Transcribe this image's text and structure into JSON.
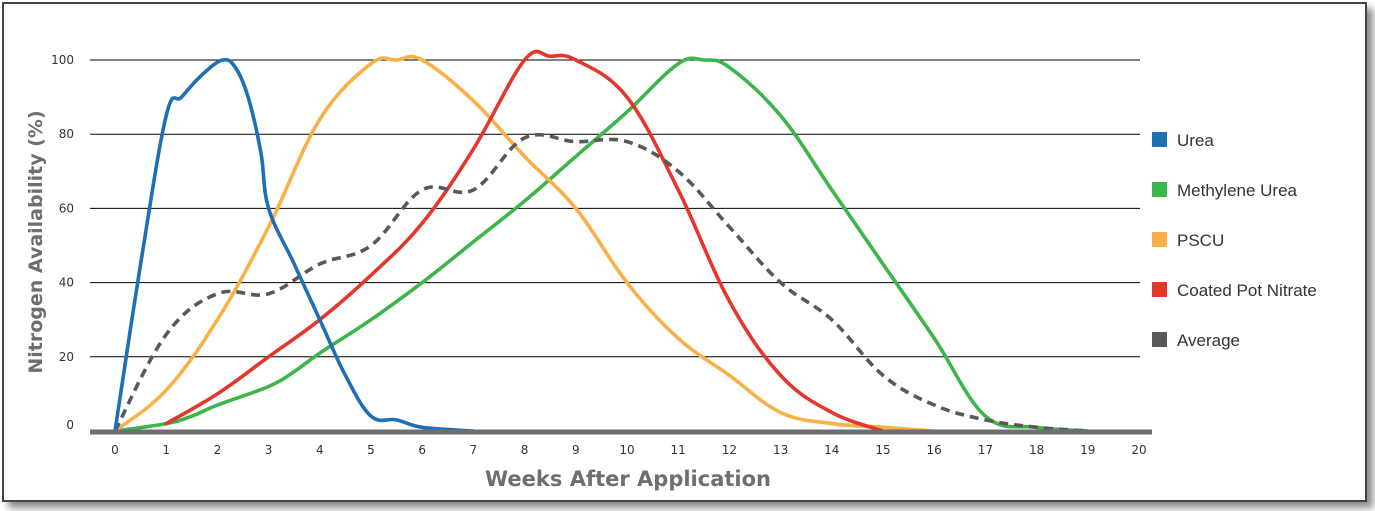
{
  "chart_data": {
    "type": "line",
    "xlabel": "Weeks After Application",
    "ylabel": "Nitrogen Availability (%)",
    "xlim": [
      0,
      20
    ],
    "ylim": [
      0,
      100
    ],
    "x_ticks": [
      "0",
      "1",
      "2",
      "3",
      "4",
      "5",
      "6",
      "7",
      "8",
      "9",
      "10",
      "11",
      "12",
      "13",
      "14",
      "15",
      "16",
      "17",
      "18",
      "19",
      "20"
    ],
    "y_ticks": [
      "0",
      "20",
      "40",
      "60",
      "80",
      "100"
    ],
    "grid": "horizontal",
    "legend_position": "right",
    "series": [
      {
        "name": "Urea",
        "color": "#1f6fb5",
        "dashed": false,
        "points": [
          [
            0,
            0
          ],
          [
            0.5,
            45
          ],
          [
            1,
            85
          ],
          [
            1.3,
            90
          ],
          [
            1.7,
            96
          ],
          [
            2.1,
            100
          ],
          [
            2.35,
            98
          ],
          [
            2.6,
            90
          ],
          [
            2.85,
            75
          ],
          [
            3,
            60
          ],
          [
            3.5,
            45
          ],
          [
            4,
            30
          ],
          [
            4.5,
            15
          ],
          [
            5,
            4
          ],
          [
            5.5,
            3
          ],
          [
            6,
            1
          ],
          [
            7,
            0
          ]
        ]
      },
      {
        "name": "Methylene Urea",
        "color": "#3cb54a",
        "dashed": false,
        "points": [
          [
            0,
            0
          ],
          [
            1,
            2
          ],
          [
            1.5,
            4
          ],
          [
            2,
            7
          ],
          [
            3,
            12
          ],
          [
            3.5,
            16
          ],
          [
            4,
            21
          ],
          [
            5,
            30
          ],
          [
            6,
            40
          ],
          [
            7,
            51
          ],
          [
            8,
            62
          ],
          [
            9,
            74
          ],
          [
            10,
            86
          ],
          [
            11,
            99
          ],
          [
            11.5,
            100
          ],
          [
            12,
            98
          ],
          [
            13,
            85
          ],
          [
            14,
            65
          ],
          [
            15,
            45
          ],
          [
            16,
            25
          ],
          [
            17,
            4
          ],
          [
            18,
            1
          ],
          [
            19,
            0
          ]
        ]
      },
      {
        "name": "PSCU",
        "color": "#f9b046",
        "dashed": false,
        "points": [
          [
            0,
            0
          ],
          [
            1,
            11
          ],
          [
            2,
            30
          ],
          [
            3,
            55
          ],
          [
            4,
            84
          ],
          [
            5,
            99
          ],
          [
            5.5,
            100
          ],
          [
            6,
            100
          ],
          [
            7,
            89
          ],
          [
            8,
            74
          ],
          [
            9,
            60
          ],
          [
            10,
            40
          ],
          [
            11,
            25
          ],
          [
            12,
            15
          ],
          [
            13,
            5
          ],
          [
            14,
            2
          ],
          [
            15,
            1
          ],
          [
            16,
            0
          ]
        ]
      },
      {
        "name": "Coated Pot Nitrate",
        "color": "#e4362b",
        "dashed": false,
        "points": [
          [
            1,
            2
          ],
          [
            2,
            10
          ],
          [
            3,
            20
          ],
          [
            4,
            30
          ],
          [
            5,
            42
          ],
          [
            6,
            56
          ],
          [
            7,
            76
          ],
          [
            8,
            100
          ],
          [
            8.5,
            101
          ],
          [
            9,
            100
          ],
          [
            10,
            90
          ],
          [
            11,
            65
          ],
          [
            12,
            35
          ],
          [
            13,
            15
          ],
          [
            14,
            5
          ],
          [
            15,
            0
          ]
        ]
      },
      {
        "name": "Average",
        "color": "#58595b",
        "dashed": true,
        "points": [
          [
            0,
            0
          ],
          [
            1,
            26
          ],
          [
            2,
            37
          ],
          [
            3,
            37
          ],
          [
            4,
            45
          ],
          [
            5,
            50
          ],
          [
            6,
            65
          ],
          [
            7,
            65
          ],
          [
            8,
            79
          ],
          [
            9,
            78
          ],
          [
            10,
            78
          ],
          [
            11,
            70
          ],
          [
            12,
            55
          ],
          [
            13,
            40
          ],
          [
            14,
            30
          ],
          [
            15,
            15
          ],
          [
            16,
            7
          ],
          [
            17,
            3
          ],
          [
            18,
            1
          ],
          [
            19,
            0
          ]
        ]
      }
    ]
  }
}
